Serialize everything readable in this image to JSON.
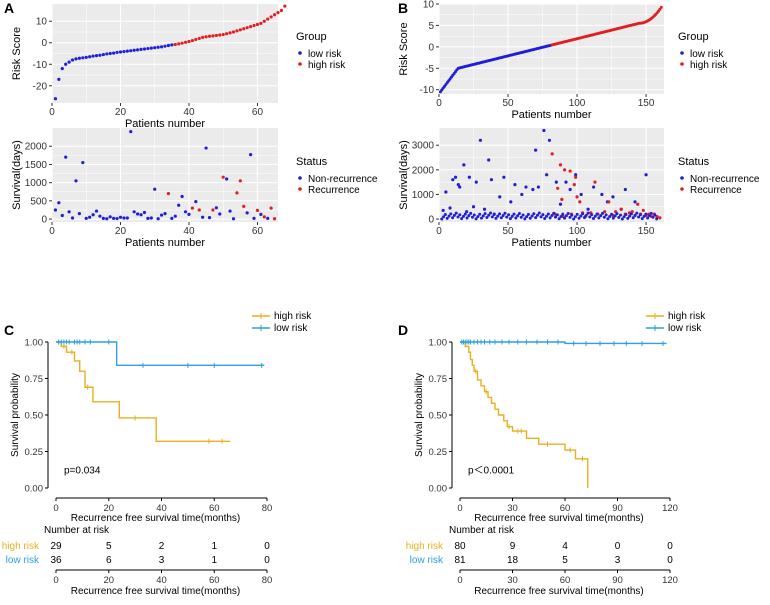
{
  "figure": {
    "panels": [
      "A",
      "B",
      "C",
      "D"
    ]
  },
  "colors": {
    "low": "#1f1fd6",
    "high": "#e02020",
    "km_high": "#e8b020",
    "km_low": "#2f9fdf",
    "panel_bg": "#ebebeb",
    "grid": "#ffffff"
  },
  "chart_data": [
    {
      "id": "A1",
      "panel": "A",
      "type": "scatter",
      "title": "",
      "xlabel": "Patients number",
      "ylabel": "Risk Score",
      "xlim": [
        0,
        66
      ],
      "ylim": [
        -28,
        18
      ],
      "xticks": [
        0,
        20,
        40,
        60
      ],
      "yticks": [
        -20,
        -10,
        0,
        10
      ],
      "legend_title": "Group",
      "legend": [
        "low risk",
        "high risk"
      ],
      "series": [
        {
          "name": "low risk",
          "color_key": "low",
          "values": [
            -26,
            -17,
            -12,
            -10,
            -9,
            -8,
            -7.5,
            -7.2,
            -7,
            -6.8,
            -6.5,
            -6.2,
            -6,
            -5.8,
            -5.5,
            -5.2,
            -5,
            -4.8,
            -4.5,
            -4.3,
            -4.1,
            -3.9,
            -3.7,
            -3.5,
            -3.3,
            -3.1,
            -2.9,
            -2.7,
            -2.5,
            -2.3,
            -2.1,
            -1.9,
            -1.6,
            -1.3,
            -1
          ]
        },
        {
          "name": "high risk",
          "color_key": "high",
          "values": [
            -0.8,
            -0.5,
            -0.2,
            0.2,
            0.6,
            1.0,
            1.5,
            2.0,
            2.5,
            2.8,
            3.0,
            3.2,
            3.4,
            3.6,
            3.8,
            4.2,
            4.6,
            5.0,
            5.5,
            6.0,
            6.5,
            7.0,
            7.5,
            8.0,
            8.5,
            9.0,
            10.0,
            11.0,
            12.0,
            13.0,
            14.0,
            15.0,
            17.0
          ]
        }
      ]
    },
    {
      "id": "A2",
      "panel": "A",
      "type": "scatter",
      "title": "",
      "xlabel": "Patients number",
      "ylabel": "Survival(days)",
      "xlim": [
        0,
        66
      ],
      "ylim": [
        -80,
        2500
      ],
      "xticks": [
        0,
        20,
        40,
        60
      ],
      "yticks": [
        0,
        500,
        1000,
        1500,
        2000
      ],
      "legend_title": "Status",
      "legend": [
        "Non-recurrence",
        "Recurrence"
      ],
      "series": [
        {
          "name": "Non-recurrence",
          "color_key": "low",
          "x": [
            1,
            2,
            3,
            4,
            5,
            6,
            7,
            8,
            9,
            10,
            11,
            12,
            13,
            14,
            15,
            16,
            17,
            18,
            19,
            20,
            21,
            22,
            23,
            24,
            25,
            26,
            27,
            28,
            29,
            30,
            31,
            32,
            33,
            35,
            36,
            37,
            38,
            39,
            40,
            42,
            44,
            45,
            46,
            48,
            49,
            51,
            52,
            53,
            57,
            58,
            59,
            61,
            63
          ],
          "y": [
            250,
            450,
            100,
            1700,
            200,
            30,
            1050,
            150,
            1550,
            20,
            50,
            120,
            220,
            80,
            20,
            10,
            60,
            20,
            15,
            50,
            30,
            30,
            2400,
            200,
            140,
            120,
            180,
            20,
            30,
            820,
            10,
            110,
            150,
            20,
            80,
            380,
            620,
            200,
            130,
            480,
            50,
            1950,
            40,
            310,
            140,
            1100,
            220,
            10,
            170,
            1770,
            20,
            130,
            20
          ]
        },
        {
          "name": "Recurrence",
          "color_key": "high",
          "x": [
            34,
            41,
            43,
            47,
            50,
            54,
            55,
            56,
            60,
            62,
            64,
            65
          ],
          "y": [
            700,
            300,
            250,
            250,
            1150,
            720,
            1050,
            350,
            240,
            60,
            300,
            10
          ]
        }
      ]
    },
    {
      "id": "B1",
      "panel": "B",
      "type": "scatter",
      "title": "",
      "xlabel": "Patients number",
      "ylabel": "Risk Score",
      "xlim": [
        0,
        163
      ],
      "ylim": [
        -11,
        10
      ],
      "xticks": [
        0,
        50,
        100,
        150
      ],
      "yticks": [
        -10,
        -5,
        0,
        5,
        10
      ],
      "legend_title": "Group",
      "legend": [
        "low risk",
        "high risk"
      ],
      "curve": {
        "n": 161,
        "split": 81,
        "first": -10.5,
        "last": 9.2
      },
      "series": [
        {
          "name": "low risk",
          "color_key": "low",
          "index_range": [
            1,
            81
          ]
        },
        {
          "name": "high risk",
          "color_key": "high",
          "index_range": [
            82,
            161
          ]
        }
      ]
    },
    {
      "id": "B2",
      "panel": "B",
      "type": "scatter",
      "title": "",
      "xlabel": "Patients number",
      "ylabel": "Survival(days)",
      "xlim": [
        0,
        163
      ],
      "ylim": [
        -120,
        3700
      ],
      "xticks": [
        0,
        50,
        100,
        150
      ],
      "yticks": [
        0,
        1000,
        2000,
        3000
      ],
      "legend_title": "Status",
      "legend": [
        "Non-recurrence",
        "Recurrence"
      ],
      "series": [
        {
          "name": "Non-recurrence",
          "color_key": "low",
          "x": [
            3,
            5,
            8,
            10,
            12,
            14,
            15,
            18,
            20,
            22,
            25,
            27,
            30,
            33,
            36,
            38,
            40,
            44,
            47,
            52,
            55,
            60,
            63,
            68,
            70,
            72,
            76,
            78,
            80,
            85,
            88,
            92,
            95,
            99,
            103,
            108,
            112,
            118,
            122,
            126,
            132,
            135,
            142,
            150
          ],
          "y": [
            350,
            1100,
            450,
            1600,
            1700,
            1400,
            1300,
            2200,
            300,
            1700,
            500,
            1500,
            3200,
            400,
            2400,
            1600,
            200,
            900,
            1700,
            700,
            1400,
            1000,
            1300,
            1200,
            2800,
            1300,
            3600,
            1800,
            3200,
            1500,
            600,
            1500,
            1200,
            1800,
            1000,
            400,
            1300,
            1000,
            700,
            900,
            400,
            1200,
            700,
            1800
          ]
        },
        {
          "name": "Recurrence",
          "color_key": "high",
          "x": [
            82,
            84,
            86,
            88,
            89,
            90,
            91,
            95,
            96,
            98,
            99,
            100,
            102,
            104,
            106,
            110,
            113,
            115,
            120,
            123,
            126,
            128,
            132,
            135,
            138,
            140,
            142,
            144,
            146,
            148,
            150,
            152,
            154,
            156,
            158,
            160
          ],
          "y": [
            2650,
            200,
            1250,
            2200,
            800,
            100,
            2000,
            1950,
            200,
            1400,
            1700,
            900,
            700,
            250,
            100,
            250,
            1500,
            200,
            300,
            700,
            150,
            300,
            400,
            200,
            250,
            300,
            150,
            600,
            200,
            350,
            150,
            200,
            100,
            200,
            100,
            50
          ]
        },
        {
          "name": "Non-recurrence",
          "color_key": "low",
          "baseline_band": true,
          "n": 120,
          "ymax": 250
        }
      ]
    },
    {
      "id": "C",
      "panel": "C",
      "type": "line",
      "title": "",
      "xlabel": "Recurrence free survival time(months)",
      "ylabel": "Survival probability",
      "xlim": [
        0,
        80
      ],
      "ylim": [
        0,
        1
      ],
      "xticks": [
        0,
        20,
        40,
        60,
        80
      ],
      "ytick_labels": [
        "0.00",
        "0.25",
        "0.50",
        "0.75",
        "1.00"
      ],
      "legend": [
        "high risk",
        "low risk"
      ],
      "pvalue": "p=0.034",
      "series": [
        {
          "name": "high risk",
          "color_key": "km_high",
          "steps": [
            [
              0,
              1.0
            ],
            [
              2,
              0.97
            ],
            [
              4,
              0.93
            ],
            [
              7,
              0.87
            ],
            [
              9,
              0.8
            ],
            [
              11,
              0.69
            ],
            [
              14,
              0.59
            ],
            [
              24,
              0.48
            ],
            [
              38,
              0.32
            ],
            [
              66,
              0.32
            ]
          ],
          "censors": [
            [
              1,
              1.0
            ],
            [
              3,
              0.97
            ],
            [
              6,
              0.93
            ],
            [
              12,
              0.69
            ],
            [
              30,
              0.48
            ],
            [
              58,
              0.32
            ],
            [
              63,
              0.32
            ]
          ]
        },
        {
          "name": "low risk",
          "color_key": "km_low",
          "steps": [
            [
              0,
              1.0
            ],
            [
              23,
              0.84
            ],
            [
              79,
              0.84
            ]
          ],
          "censors": [
            [
              1,
              1.0
            ],
            [
              2,
              1.0
            ],
            [
              3,
              1.0
            ],
            [
              4,
              1.0
            ],
            [
              5,
              1.0
            ],
            [
              7,
              1.0
            ],
            [
              8,
              1.0
            ],
            [
              9,
              1.0
            ],
            [
              11,
              1.0
            ],
            [
              13,
              1.0
            ],
            [
              20,
              1.0
            ],
            [
              33,
              0.84
            ],
            [
              50,
              0.84
            ],
            [
              60,
              0.84
            ],
            [
              78,
              0.84
            ]
          ]
        }
      ],
      "risk_table": {
        "title": "Number at risk",
        "rows": [
          {
            "label": "high risk",
            "color_key": "km_high",
            "values": [
              "29",
              "5",
              "2",
              "1",
              "0"
            ]
          },
          {
            "label": "low risk",
            "color_key": "km_low",
            "values": [
              "36",
              "6",
              "3",
              "1",
              "0"
            ]
          }
        ],
        "xticks": [
          "0",
          "20",
          "40",
          "60",
          "80"
        ],
        "xlabel": "Recurrence free survival time(months)"
      }
    },
    {
      "id": "D",
      "panel": "D",
      "type": "line",
      "title": "",
      "xlabel": "Recurrence free survival time(months)",
      "ylabel": "Survival probability",
      "xlim": [
        0,
        120
      ],
      "ylim": [
        0,
        1
      ],
      "xticks": [
        0,
        30,
        60,
        90,
        120
      ],
      "ytick_labels": [
        "0.00",
        "0.25",
        "0.50",
        "0.75",
        "1.00"
      ],
      "legend": [
        "high risk",
        "low risk"
      ],
      "pvalue": "p＜0.0001",
      "series": [
        {
          "name": "high risk",
          "color_key": "km_high",
          "steps": [
            [
              0,
              1.0
            ],
            [
              3,
              0.97
            ],
            [
              5,
              0.93
            ],
            [
              6,
              0.88
            ],
            [
              7,
              0.84
            ],
            [
              8,
              0.8
            ],
            [
              10,
              0.74
            ],
            [
              12,
              0.7
            ],
            [
              14,
              0.66
            ],
            [
              16,
              0.62
            ],
            [
              18,
              0.58
            ],
            [
              20,
              0.54
            ],
            [
              22,
              0.5
            ],
            [
              25,
              0.46
            ],
            [
              27,
              0.42
            ],
            [
              30,
              0.39
            ],
            [
              38,
              0.34
            ],
            [
              45,
              0.3
            ],
            [
              60,
              0.26
            ],
            [
              66,
              0.2
            ],
            [
              73,
              0.2
            ],
            [
              73,
              0.0
            ]
          ],
          "censors": [
            [
              2,
              1.0
            ],
            [
              9,
              0.8
            ],
            [
              15,
              0.66
            ],
            [
              28,
              0.42
            ],
            [
              33,
              0.39
            ],
            [
              35,
              0.39
            ],
            [
              50,
              0.3
            ],
            [
              63,
              0.26
            ],
            [
              70,
              0.2
            ]
          ]
        },
        {
          "name": "low risk",
          "color_key": "km_low",
          "steps": [
            [
              0,
              1.0
            ],
            [
              60,
              1.0
            ],
            [
              60,
              0.99
            ],
            [
              118,
              0.99
            ]
          ],
          "censors": [
            [
              1,
              1.0
            ],
            [
              2,
              1.0
            ],
            [
              3,
              1.0
            ],
            [
              4,
              1.0
            ],
            [
              5,
              1.0
            ],
            [
              6,
              1.0
            ],
            [
              8,
              1.0
            ],
            [
              10,
              1.0
            ],
            [
              12,
              1.0
            ],
            [
              14,
              1.0
            ],
            [
              17,
              1.0
            ],
            [
              20,
              1.0
            ],
            [
              24,
              1.0
            ],
            [
              28,
              1.0
            ],
            [
              33,
              1.0
            ],
            [
              38,
              1.0
            ],
            [
              44,
              1.0
            ],
            [
              50,
              1.0
            ],
            [
              56,
              1.0
            ],
            [
              65,
              0.99
            ],
            [
              72,
              0.99
            ],
            [
              80,
              0.99
            ],
            [
              88,
              0.99
            ],
            [
              95,
              0.99
            ],
            [
              104,
              0.99
            ],
            [
              116,
              0.99
            ]
          ]
        }
      ],
      "risk_table": {
        "title": "Number at risk",
        "rows": [
          {
            "label": "high risk",
            "color_key": "km_high",
            "values": [
              "80",
              "9",
              "4",
              "0",
              "0"
            ]
          },
          {
            "label": "low risk",
            "color_key": "km_low",
            "values": [
              "81",
              "18",
              "5",
              "3",
              "0"
            ]
          }
        ],
        "xticks": [
          "0",
          "30",
          "60",
          "90",
          "120"
        ],
        "xlabel": "Recurrence free survival time(months)"
      }
    }
  ]
}
